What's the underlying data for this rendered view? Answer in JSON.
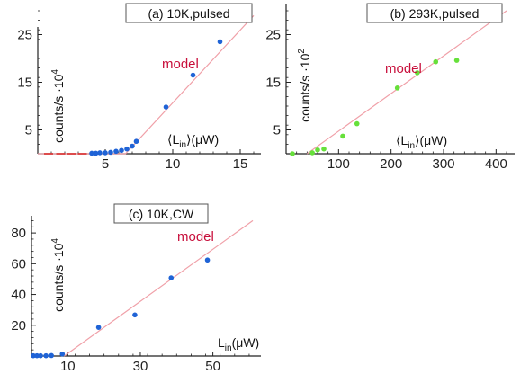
{
  "colors": {
    "model_line": "#f0a0a8",
    "model_text": "#c8103c",
    "blue_points": "#1f63d6",
    "green_points": "#66e03a",
    "red_points": "#e03030",
    "axis": "#222222"
  },
  "chart_data": [
    {
      "type": "scatter",
      "panel_label": "(a) 10K,pulsed",
      "ylabel": "counts/s ·10",
      "ylabel_exp": "4",
      "xlabel_main": "⟨L",
      "xlabel_sub": "in",
      "xlabel_tail": "⟩(μW)",
      "annotation": "model",
      "xlim": [
        0,
        16
      ],
      "ylim": [
        0,
        30
      ],
      "x_ticks": [
        5,
        10,
        15
      ],
      "y_ticks": [
        5,
        15,
        25
      ],
      "series": [
        {
          "color": "blue",
          "marker": "dot",
          "x": [
            4.0,
            4.3,
            4.6,
            5.0,
            5.4,
            5.8,
            6.2,
            6.6,
            7.0,
            7.3,
            9.5,
            11.5,
            13.5
          ],
          "y": [
            0.1,
            0.1,
            0.2,
            0.2,
            0.3,
            0.5,
            0.7,
            1.0,
            1.6,
            2.6,
            9.8,
            16.5,
            23.5
          ]
        },
        {
          "color": "red",
          "marker": "dash",
          "x": [
            0.8,
            1.7,
            2.5,
            3.3
          ],
          "y": [
            0.0,
            0.0,
            0.0,
            0.0
          ]
        }
      ],
      "model": {
        "x": [
          0,
          6.5,
          16
        ],
        "y": [
          0,
          0,
          29
        ]
      }
    },
    {
      "type": "scatter",
      "panel_label": "(b) 293K,pulsed",
      "ylabel": "counts/s ·10",
      "ylabel_exp": "2",
      "xlabel_main": "⟨L",
      "xlabel_sub": "in",
      "xlabel_tail": "⟩(μW)",
      "annotation": "model",
      "xlim": [
        0,
        420
      ],
      "ylim": [
        0,
        30
      ],
      "x_ticks": [
        100,
        200,
        300,
        400
      ],
      "y_ticks": [
        5,
        15,
        25
      ],
      "series": [
        {
          "color": "green",
          "marker": "dot",
          "x": [
            12,
            50,
            60,
            72,
            108,
            135,
            212,
            250,
            285,
            325
          ],
          "y": [
            0.0,
            0.2,
            0.8,
            1.0,
            3.7,
            6.3,
            13.8,
            17.0,
            19.3,
            19.6
          ]
        }
      ],
      "model": {
        "x": [
          40,
          420
        ],
        "y": [
          0,
          30
        ]
      }
    },
    {
      "type": "scatter",
      "panel_label": "(c) 10K,CW",
      "ylabel": "counts/s ·10",
      "ylabel_exp": "4",
      "xlabel_main": "L",
      "xlabel_sub": "in",
      "xlabel_tail": "(μW)",
      "annotation": "model",
      "xlim": [
        0,
        62
      ],
      "ylim": [
        0,
        90
      ],
      "x_ticks": [
        10,
        30,
        50
      ],
      "y_ticks": [
        20,
        40,
        60,
        80
      ],
      "series": [
        {
          "color": "blue",
          "marker": "dot",
          "x": [
            0.5,
            1.5,
            2.5,
            4.0,
            5.5,
            8.5,
            18.5,
            28.5,
            38.5,
            48.5
          ],
          "y": [
            0.2,
            0.2,
            0.2,
            0.2,
            0.3,
            1.3,
            18.6,
            26.7,
            50.8,
            62.4
          ]
        }
      ],
      "model": {
        "x": [
          9,
          61
        ],
        "y": [
          0,
          88
        ]
      }
    }
  ]
}
